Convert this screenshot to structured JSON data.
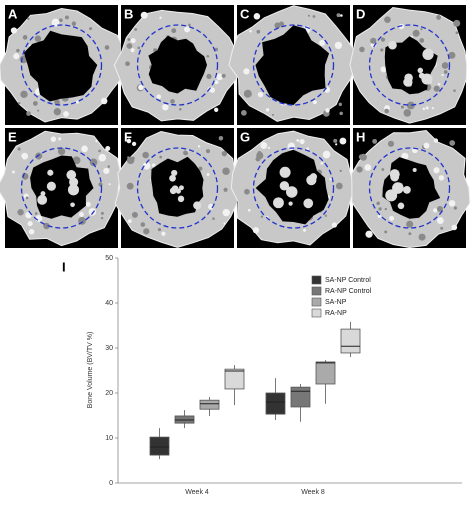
{
  "panel_labels": [
    "A",
    "B",
    "C",
    "D",
    "E",
    "F",
    "G",
    "H"
  ],
  "plot_label": "I",
  "chart_data": {
    "type": "box",
    "ylabel": "Bone Volume (BV/TV %)",
    "categories": [
      "Week 4",
      "Week 8"
    ],
    "ylim": [
      0,
      50
    ],
    "yticks": [
      0,
      10,
      20,
      30,
      40,
      50
    ],
    "series": [
      {
        "name": "SA-NP Control",
        "color": "#333333",
        "values": [
          [
            5.3,
            6.2,
            8,
            10.2,
            12.2
          ],
          [
            14,
            15.3,
            18,
            20,
            23.3
          ]
        ]
      },
      {
        "name": "RA-NP Control",
        "color": "#777777",
        "values": [
          [
            12.2,
            13.3,
            14,
            14.9,
            16.2
          ],
          [
            13.6,
            16.9,
            20.4,
            21.3,
            22
          ]
        ]
      },
      {
        "name": "SA-NP",
        "color": "#aaaaaa",
        "values": [
          [
            14.9,
            16.4,
            17.6,
            18.4,
            19.1
          ],
          [
            17.6,
            22,
            26.7,
            26.9,
            27.3
          ]
        ]
      },
      {
        "name": "RA-NP",
        "color": "#d9d9d9",
        "values": [
          [
            17.3,
            20.9,
            24.9,
            25.3,
            26.2
          ],
          [
            28,
            28.9,
            30.4,
            34.2,
            35.8
          ]
        ]
      }
    ]
  }
}
